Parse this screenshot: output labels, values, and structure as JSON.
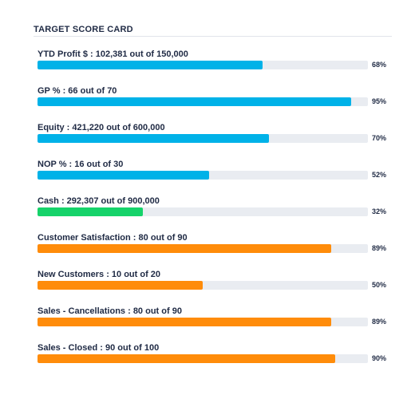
{
  "card": {
    "title": "TARGET SCORE CARD"
  },
  "colors": {
    "blue": "#00b2e8",
    "green": "#16d36a",
    "orange": "#ff8c0a",
    "track": "#e9ecf1"
  },
  "metrics": [
    {
      "label": "YTD Profit $ : 102,381 out of 150,000",
      "percent_label": "68%",
      "value": 68,
      "color": "blue"
    },
    {
      "label": "GP % : 66 out of 70",
      "percent_label": "95%",
      "value": 95,
      "color": "blue"
    },
    {
      "label": "Equity : 421,220 out of 600,000",
      "percent_label": "70%",
      "value": 70,
      "color": "blue"
    },
    {
      "label": "NOP % : 16 out of 30",
      "percent_label": "52%",
      "value": 52,
      "color": "blue"
    },
    {
      "label": "Cash : 292,307 out of 900,000",
      "percent_label": "32%",
      "value": 32,
      "color": "green"
    },
    {
      "label": "Customer Satisfaction : 80 out of 90",
      "percent_label": "89%",
      "value": 89,
      "color": "orange"
    },
    {
      "label": "New Customers : 10 out of 20",
      "percent_label": "50%",
      "value": 50,
      "color": "orange"
    },
    {
      "label": "Sales - Cancellations : 80 out of 90",
      "percent_label": "89%",
      "value": 89,
      "color": "orange"
    },
    {
      "label": "Sales - Closed : 90 out of 100",
      "percent_label": "90%",
      "value": 90,
      "color": "orange"
    }
  ]
}
